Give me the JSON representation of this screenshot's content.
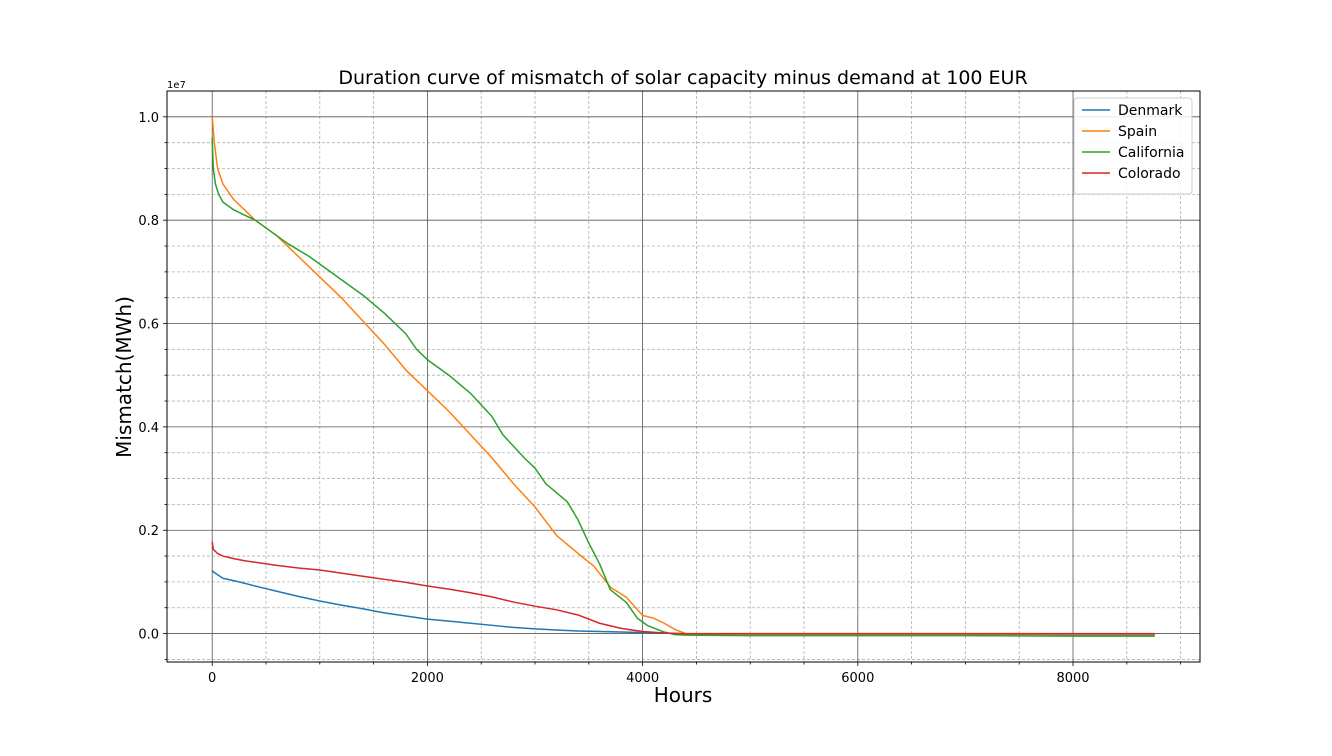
{
  "chart_data": {
    "type": "line",
    "title": "Duration curve of mismatch of solar capacity minus demand at 100 EUR",
    "xlabel": "Hours",
    "ylabel": "Mismatch(MWh)",
    "y_offset_label": "1e7",
    "xlim": [
      -420,
      9180
    ],
    "ylim": [
      -0.055,
      1.05
    ],
    "y_scale_multiplier": 10000000,
    "x_ticks": [
      0,
      2000,
      4000,
      6000,
      8000
    ],
    "x_tick_labels": [
      "0",
      "2000",
      "4000",
      "6000",
      "8000"
    ],
    "x_minor_ticks": [
      -500,
      500,
      1000,
      1500,
      2500,
      3000,
      3500,
      4500,
      5000,
      5500,
      6500,
      7000,
      7500,
      8500,
      9000
    ],
    "y_ticks": [
      0.0,
      0.2,
      0.4,
      0.6,
      0.8,
      1.0
    ],
    "y_tick_labels": [
      "0.0",
      "0.2",
      "0.4",
      "0.6",
      "0.8",
      "1.0"
    ],
    "y_minor_ticks": [
      -0.05,
      0.05,
      0.1,
      0.15,
      0.25,
      0.3,
      0.35,
      0.45,
      0.5,
      0.55,
      0.65,
      0.7,
      0.75,
      0.85,
      0.9,
      0.95
    ],
    "grid": true,
    "legend_position": "top-right",
    "series": [
      {
        "name": "Denmark",
        "color": "#1f77b4",
        "x": [
          0,
          20,
          100,
          250,
          400,
          600,
          800,
          1000,
          1200,
          1400,
          1600,
          1800,
          2000,
          2200,
          2400,
          2600,
          2800,
          3000,
          3200,
          3400,
          3600,
          3800,
          4000,
          4200,
          4400,
          5000,
          6000,
          7000,
          8000,
          8760
        ],
        "y": [
          0.122,
          0.118,
          0.107,
          0.1,
          0.092,
          0.082,
          0.072,
          0.063,
          0.055,
          0.048,
          0.04,
          0.034,
          0.028,
          0.024,
          0.02,
          0.016,
          0.012,
          0.009,
          0.007,
          0.005,
          0.004,
          0.003,
          0.002,
          0.001,
          -0.001,
          -0.001,
          -0.001,
          -0.001,
          -0.002,
          -0.002
        ]
      },
      {
        "name": "Spain",
        "color": "#ff7f0e",
        "x": [
          0,
          20,
          50,
          100,
          200,
          300,
          400,
          600,
          800,
          1000,
          1200,
          1400,
          1600,
          1800,
          2000,
          2200,
          2400,
          2600,
          2800,
          3000,
          3200,
          3400,
          3550,
          3700,
          3850,
          4000,
          4100,
          4200,
          4300,
          4400,
          4500,
          5000,
          6000,
          7000,
          8000,
          8760
        ],
        "y": [
          1.0,
          0.95,
          0.9,
          0.87,
          0.84,
          0.82,
          0.8,
          0.77,
          0.73,
          0.69,
          0.65,
          0.605,
          0.56,
          0.51,
          0.47,
          0.43,
          0.385,
          0.34,
          0.29,
          0.245,
          0.19,
          0.155,
          0.13,
          0.09,
          0.07,
          0.035,
          0.03,
          0.02,
          0.008,
          0.0,
          -0.001,
          -0.001,
          -0.001,
          -0.001,
          -0.001,
          -0.001
        ]
      },
      {
        "name": "California",
        "color": "#2ca02c",
        "x": [
          0,
          10,
          30,
          60,
          100,
          200,
          300,
          400,
          500,
          700,
          900,
          1000,
          1200,
          1400,
          1600,
          1800,
          1900,
          2000,
          2200,
          2400,
          2600,
          2700,
          2900,
          3000,
          3100,
          3300,
          3400,
          3500,
          3600,
          3700,
          3850,
          3950,
          4050,
          4200,
          4300,
          4400,
          5000,
          6000,
          7000,
          8000,
          8760
        ],
        "y": [
          0.96,
          0.9,
          0.87,
          0.85,
          0.835,
          0.82,
          0.81,
          0.8,
          0.785,
          0.755,
          0.73,
          0.715,
          0.685,
          0.655,
          0.62,
          0.58,
          0.55,
          0.53,
          0.5,
          0.465,
          0.42,
          0.385,
          0.34,
          0.32,
          0.29,
          0.255,
          0.22,
          0.175,
          0.135,
          0.085,
          0.06,
          0.03,
          0.015,
          0.003,
          -0.002,
          -0.003,
          -0.004,
          -0.004,
          -0.004,
          -0.005,
          -0.005
        ]
      },
      {
        "name": "Colorado",
        "color": "#d62728",
        "x": [
          0,
          10,
          50,
          100,
          200,
          300,
          400,
          600,
          800,
          1000,
          1200,
          1400,
          1600,
          1800,
          2000,
          2200,
          2400,
          2600,
          2800,
          3000,
          3200,
          3400,
          3600,
          3800,
          4000,
          4200,
          4400,
          5000,
          6000,
          7000,
          8000,
          8760
        ],
        "y": [
          0.178,
          0.163,
          0.155,
          0.15,
          0.145,
          0.141,
          0.138,
          0.132,
          0.127,
          0.123,
          0.117,
          0.111,
          0.105,
          0.099,
          0.092,
          0.086,
          0.079,
          0.071,
          0.061,
          0.053,
          0.046,
          0.036,
          0.02,
          0.01,
          0.004,
          0.001,
          0.0,
          0.0,
          0.0,
          0.0,
          0.0,
          0.0
        ]
      }
    ]
  }
}
